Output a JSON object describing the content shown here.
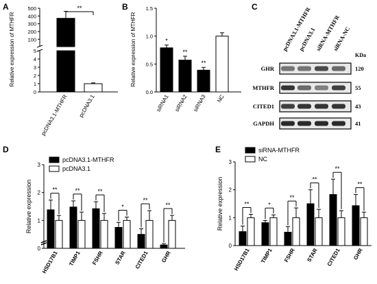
{
  "panels": {
    "A": "A",
    "B": "B",
    "C": "C",
    "D": "D",
    "E": "E"
  },
  "colors": {
    "filled": "#000000",
    "open": "#ffffff",
    "axis": "#000000"
  },
  "chart_data": [
    {
      "id": "A",
      "type": "bar",
      "ylabel": "Relative expression of MTHFR",
      "categories": [
        "pcDNA3.1-MTHFR",
        "pcDNA3.1"
      ],
      "values": [
        370,
        1
      ],
      "errors": [
        90,
        0.1
      ],
      "fills": [
        "filled",
        "open"
      ],
      "axis_break": true,
      "ylim_lower": [
        0,
        5
      ],
      "ylim_upper": [
        5,
        500
      ],
      "yticks_lower": [
        "0",
        "1",
        "2",
        "3",
        "4",
        "5"
      ],
      "yticks_upper": [
        "100",
        "200",
        "300",
        "400",
        "500"
      ],
      "significance": [
        {
          "label": "**",
          "between": [
            0,
            1
          ]
        }
      ]
    },
    {
      "id": "B",
      "type": "bar",
      "ylabel": "Relative expression of MTHFR",
      "categories": [
        "siRNA1",
        "siRNA2",
        "siRNA3",
        "NC"
      ],
      "values": [
        0.79,
        0.57,
        0.39,
        1.0
      ],
      "errors": [
        0.05,
        0.07,
        0.05,
        0.06
      ],
      "fills": [
        "filled",
        "filled",
        "filled",
        "open"
      ],
      "ylim": [
        0,
        1.5
      ],
      "yticks": [
        "0.0",
        "0.5",
        "1.0",
        "1.5"
      ],
      "marks": [
        "*",
        "**",
        "**",
        ""
      ]
    },
    {
      "id": "C",
      "type": "blot",
      "lanes": [
        "pcDNA3.1-MTHFR",
        "pcDNA3.1",
        "siRNA-MTHFR",
        "siRNA-NC"
      ],
      "unit": "KDa",
      "rows": [
        {
          "protein": "GHR",
          "kda": "120",
          "intensity": [
            0.55,
            0.55,
            0.75,
            0.6
          ]
        },
        {
          "protein": "MTHFR",
          "kda": "55",
          "intensity": [
            0.85,
            0.6,
            0.5,
            0.8
          ]
        },
        {
          "protein": "CITED1",
          "kda": "43",
          "intensity": [
            0.8,
            0.85,
            0.85,
            0.85
          ]
        },
        {
          "protein": "GAPDH",
          "kda": "41",
          "intensity": [
            0.9,
            0.9,
            0.9,
            0.9
          ]
        }
      ]
    },
    {
      "id": "D",
      "type": "bar",
      "ylabel": "Relative expression",
      "categories": [
        "HSD17B1",
        "TIMP1",
        "FSHR",
        "STAR",
        "CITED1",
        "GHR"
      ],
      "series": [
        {
          "name": "pcDNA3.1-MTHFR",
          "fill": "filled",
          "values": [
            1.38,
            1.48,
            1.42,
            0.75,
            0.5,
            0.12
          ],
          "errors": [
            0.35,
            0.22,
            0.25,
            0.18,
            0.2,
            0.05
          ]
        },
        {
          "name": "pcDNA3.1",
          "fill": "open",
          "values": [
            1.0,
            1.0,
            1.0,
            1.0,
            1.0,
            1.0
          ],
          "errors": [
            0.18,
            0.3,
            0.25,
            0.12,
            0.35,
            0.18
          ]
        }
      ],
      "ylim": [
        0,
        3
      ],
      "yticks": [
        "0",
        "1",
        "2",
        "3"
      ],
      "axis_break_at": 0.25,
      "significance": [
        "**",
        "**",
        "**",
        "*",
        "**",
        "**"
      ]
    },
    {
      "id": "E",
      "type": "bar",
      "ylabel": "Relative expression",
      "categories": [
        "HSD17B1",
        "TIMP1",
        "FSHR",
        "STAR",
        "CITED1",
        "GHR"
      ],
      "series": [
        {
          "name": "siRNA-MTHFR",
          "fill": "filled",
          "values": [
            0.5,
            0.82,
            0.48,
            1.5,
            1.83,
            1.43
          ],
          "errors": [
            0.2,
            0.08,
            0.2,
            0.5,
            0.55,
            0.4
          ]
        },
        {
          "name": "NC",
          "fill": "open",
          "values": [
            1.0,
            1.0,
            1.0,
            1.0,
            1.0,
            1.0
          ],
          "errors": [
            0.12,
            0.1,
            0.35,
            0.3,
            0.25,
            0.2
          ]
        }
      ],
      "ylim": [
        0,
        3
      ],
      "yticks": [
        "0",
        "1",
        "2",
        "3"
      ],
      "significance": [
        "**",
        "*",
        "**",
        "**",
        "**",
        "**"
      ]
    }
  ]
}
